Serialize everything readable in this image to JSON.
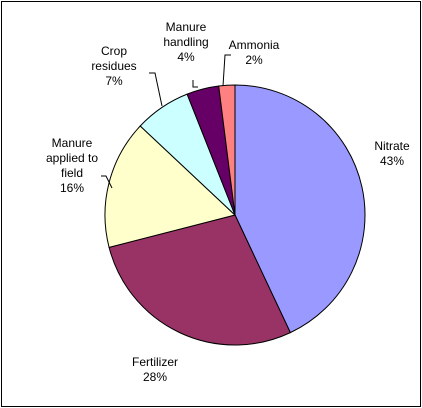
{
  "chart_data": {
    "type": "pie",
    "categories": [
      "Nitrate",
      "Fertilizer",
      "Manure applied to field",
      "Crop residues",
      "Manure handling",
      "Ammonia"
    ],
    "values": [
      43,
      28,
      16,
      7,
      4,
      2
    ],
    "value_labels": [
      "43%",
      "28%",
      "16%",
      "7%",
      "4%",
      "2%"
    ],
    "colors": [
      "#9999ff",
      "#993366",
      "#ffffcc",
      "#ccffff",
      "#660066",
      "#ff8080"
    ]
  }
}
